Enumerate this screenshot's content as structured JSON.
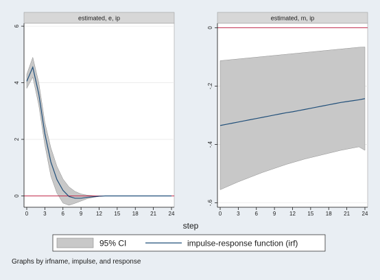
{
  "figure": {
    "x_axis_title": "step",
    "note": "Graphs by irfname, impulse, and response",
    "legend": {
      "ci_label": "95% CI",
      "irf_label": "impulse-response function (irf)"
    },
    "colors": {
      "background": "#e9eef3",
      "plot_bg": "#ffffff",
      "header_bg": "#d7d7d7",
      "ci_fill": "#c8c8c8",
      "ci_stroke": "#8c8c8c",
      "irf_line": "#1f4e79",
      "zero_line": "#c0294a",
      "grid": "#eaeaea"
    }
  },
  "chart_data": [
    {
      "type": "area",
      "title": "estimated, e, ip",
      "x": [
        0,
        1,
        2,
        3,
        4,
        5,
        6,
        7,
        8,
        9,
        10,
        11,
        12,
        13,
        14,
        15,
        16,
        17,
        18,
        19,
        20,
        21,
        22,
        23,
        24
      ],
      "xticks": [
        0,
        3,
        6,
        9,
        12,
        15,
        18,
        21,
        24
      ],
      "xlim": [
        0,
        24
      ],
      "ylim": [
        -0.4,
        6.1
      ],
      "yticks": [
        0,
        2,
        4,
        6
      ],
      "ytick_labels": [
        "0",
        "2",
        "4",
        "6"
      ],
      "series": [
        {
          "name": "95% CI",
          "lower": [
            3.8,
            4.2,
            3.2,
            1.8,
            0.7,
            0.1,
            -0.25,
            -0.33,
            -0.26,
            -0.18,
            -0.1,
            -0.05,
            -0.02,
            0,
            0,
            0,
            0,
            0,
            0,
            0,
            0,
            0,
            0,
            0,
            0
          ],
          "upper": [
            4.3,
            4.9,
            4.0,
            2.6,
            1.7,
            1.05,
            0.6,
            0.32,
            0.16,
            0.07,
            0.03,
            0.01,
            0,
            0,
            0,
            0,
            0,
            0,
            0,
            0,
            0,
            0,
            0,
            0,
            0
          ]
        },
        {
          "name": "impulse-response function (irf)",
          "values": [
            4.05,
            4.55,
            3.6,
            2.2,
            1.2,
            0.58,
            0.2,
            -0.02,
            -0.08,
            -0.08,
            -0.05,
            -0.03,
            -0.01,
            0,
            0,
            0,
            0,
            0,
            0,
            0,
            0,
            0,
            0,
            0,
            0
          ]
        }
      ]
    },
    {
      "type": "area",
      "title": "estimated, m, ip",
      "x": [
        0,
        1,
        2,
        3,
        4,
        5,
        6,
        7,
        8,
        9,
        10,
        11,
        12,
        13,
        14,
        15,
        16,
        17,
        18,
        19,
        20,
        21,
        22,
        23,
        24
      ],
      "xticks": [
        0,
        3,
        6,
        9,
        12,
        15,
        18,
        21,
        24
      ],
      "xlim": [
        0,
        24
      ],
      "ylim": [
        -0.615,
        0.015
      ],
      "yticks": [
        0,
        -0.2,
        -0.4,
        -0.6
      ],
      "ytick_labels": [
        "0",
        "-.2",
        "-.4",
        "-.6"
      ],
      "series": [
        {
          "name": "95% CI",
          "lower": [
            -0.555,
            -0.546,
            -0.537,
            -0.528,
            -0.52,
            -0.512,
            -0.504,
            -0.496,
            -0.489,
            -0.482,
            -0.475,
            -0.468,
            -0.462,
            -0.456,
            -0.45,
            -0.445,
            -0.44,
            -0.435,
            -0.43,
            -0.425,
            -0.42,
            -0.416,
            -0.412,
            -0.408,
            -0.42
          ],
          "upper": [
            -0.113,
            -0.111,
            -0.109,
            -0.107,
            -0.105,
            -0.103,
            -0.101,
            -0.099,
            -0.097,
            -0.095,
            -0.093,
            -0.091,
            -0.089,
            -0.087,
            -0.085,
            -0.083,
            -0.081,
            -0.079,
            -0.077,
            -0.075,
            -0.073,
            -0.071,
            -0.069,
            -0.067,
            -0.066
          ]
        },
        {
          "name": "impulse-response function (irf)",
          "values": [
            -0.335,
            -0.331,
            -0.327,
            -0.323,
            -0.319,
            -0.315,
            -0.311,
            -0.307,
            -0.303,
            -0.299,
            -0.295,
            -0.291,
            -0.288,
            -0.284,
            -0.28,
            -0.276,
            -0.272,
            -0.268,
            -0.264,
            -0.26,
            -0.256,
            -0.253,
            -0.25,
            -0.247,
            -0.243
          ]
        }
      ]
    }
  ]
}
